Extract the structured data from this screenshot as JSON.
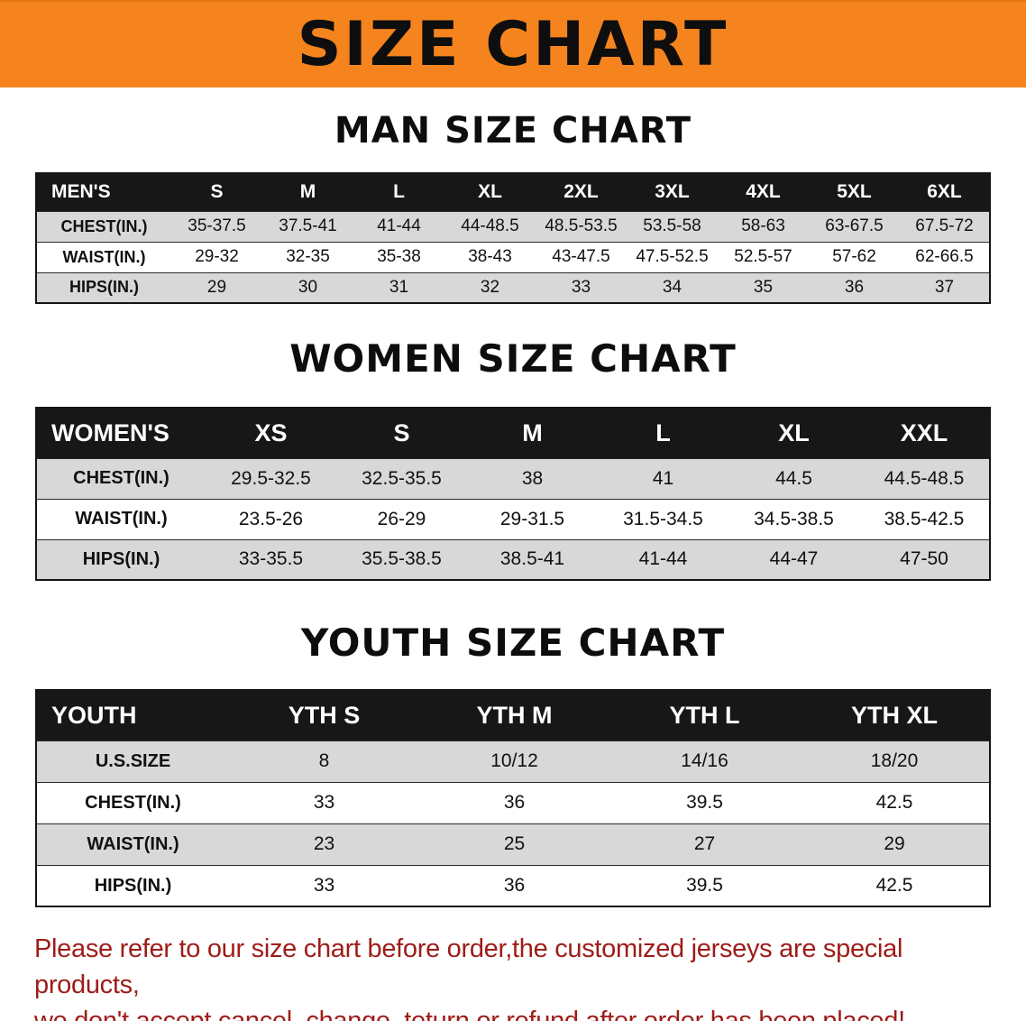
{
  "banner": {
    "title": "SIZE CHART",
    "bg_color": "#F5841F"
  },
  "sections": [
    {
      "heading": "MAN SIZE CHART",
      "table": {
        "header": [
          "MEN'S",
          "S",
          "M",
          "L",
          "XL",
          "2XL",
          "3XL",
          "4XL",
          "5XL",
          "6XL"
        ],
        "rows": [
          [
            "CHEST(IN.)",
            "35-37.5",
            "37.5-41",
            "41-44",
            "44-48.5",
            "48.5-53.5",
            "53.5-58",
            "58-63",
            "63-67.5",
            "67.5-72"
          ],
          [
            "WAIST(IN.)",
            "29-32",
            "32-35",
            "35-38",
            "38-43",
            "43-47.5",
            "47.5-52.5",
            "52.5-57",
            "57-62",
            "62-66.5"
          ],
          [
            "HIPS(IN.)",
            "29",
            "30",
            "31",
            "32",
            "33",
            "34",
            "35",
            "36",
            "37"
          ]
        ]
      }
    },
    {
      "heading": "WOMEN SIZE CHART",
      "table": {
        "header": [
          "WOMEN'S",
          "XS",
          "S",
          "M",
          "L",
          "XL",
          "XXL"
        ],
        "rows": [
          [
            "CHEST(IN.)",
            "29.5-32.5",
            "32.5-35.5",
            "38",
            "41",
            "44.5",
            "44.5-48.5"
          ],
          [
            "WAIST(IN.)",
            "23.5-26",
            "26-29",
            "29-31.5",
            "31.5-34.5",
            "34.5-38.5",
            "38.5-42.5"
          ],
          [
            "HIPS(IN.)",
            "33-35.5",
            "35.5-38.5",
            "38.5-41",
            "41-44",
            "44-47",
            "47-50"
          ]
        ]
      }
    },
    {
      "heading": "YOUTH SIZE CHART",
      "table": {
        "header": [
          "YOUTH",
          "YTH S",
          "YTH M",
          "YTH L",
          "YTH XL"
        ],
        "rows": [
          [
            "U.S.SIZE",
            "8",
            "10/12",
            "14/16",
            "18/20"
          ],
          [
            "CHEST(IN.)",
            "33",
            "36",
            "39.5",
            "42.5"
          ],
          [
            "WAIST(IN.)",
            "23",
            "25",
            "27",
            "29"
          ],
          [
            "HIPS(IN.)",
            "33",
            "36",
            "39.5",
            "42.5"
          ]
        ]
      }
    }
  ],
  "disclaimer": {
    "line1": "Please refer to our size chart before order,the customized jerseys are special products,",
    "line2": "we don't accept cancel, change, teturn or refund after order has been placed!",
    "color": "#9E1C18"
  }
}
